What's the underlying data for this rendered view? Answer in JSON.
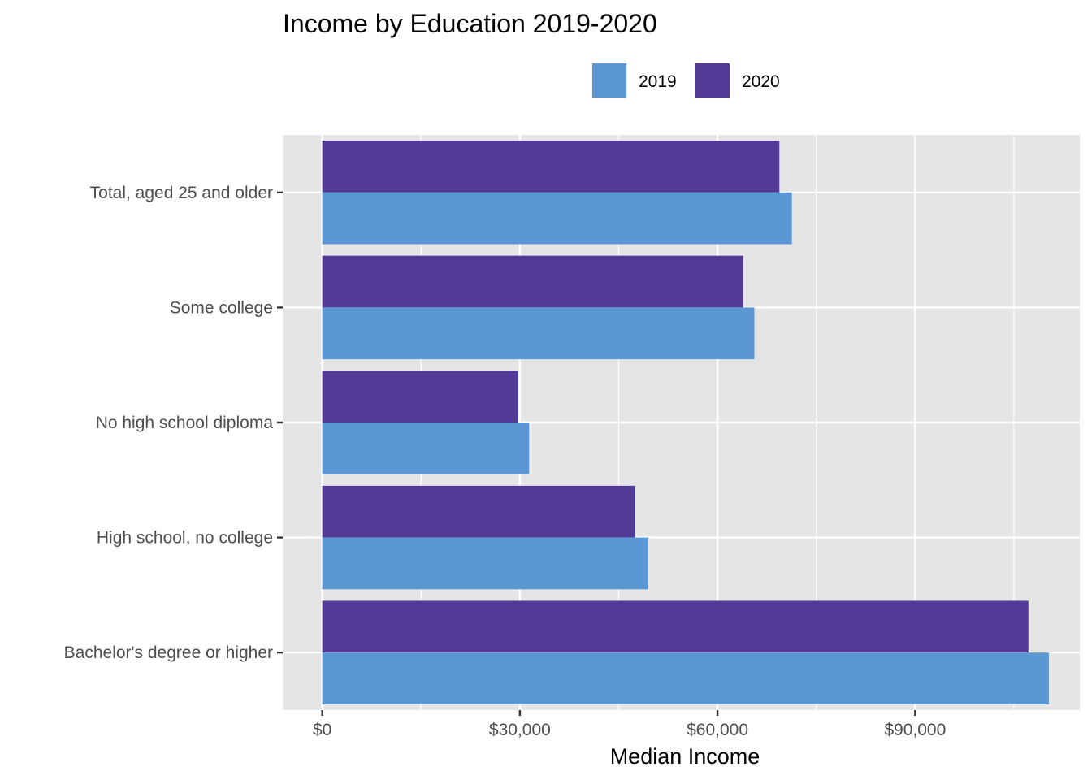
{
  "chart_data": {
    "type": "bar",
    "orientation": "horizontal",
    "title": "Income by Education 2019-2020",
    "xlabel": "Median Income",
    "ylabel": "",
    "xlim": [
      -6000,
      115000
    ],
    "x_ticks": [
      0,
      30000,
      60000,
      90000
    ],
    "x_tick_labels": [
      "$0",
      "$30,000",
      "$60,000",
      "$90,000"
    ],
    "categories": [
      "Total, aged 25 and older",
      "Some college",
      "No high school diploma",
      "High school, no college",
      "Bachelor's degree or higher"
    ],
    "series": [
      {
        "name": "2019",
        "color": "#5c97d5",
        "values": [
          71300,
          65600,
          31400,
          49500,
          110300
        ]
      },
      {
        "name": "2020",
        "color": "#533a96",
        "values": [
          69400,
          63900,
          29700,
          47500,
          107200
        ]
      }
    ],
    "legend": {
      "position": "top"
    },
    "grid": true,
    "panel_background": "#e5e5e5",
    "grid_color": "#ffffff"
  }
}
